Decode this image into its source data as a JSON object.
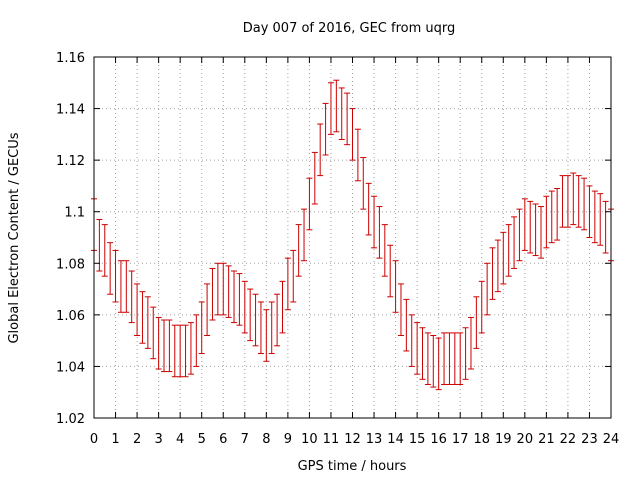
{
  "chart_data": {
    "type": "scatter",
    "title": "Day 007 of 2016, GEC from uqrg",
    "xlabel": "GPS time / hours",
    "ylabel": "Global Electron Content / GECUs",
    "xlim": [
      0,
      24
    ],
    "ylim": [
      1.02,
      1.16
    ],
    "xticks": [
      0,
      1,
      2,
      3,
      4,
      5,
      6,
      7,
      8,
      9,
      10,
      11,
      12,
      13,
      14,
      15,
      16,
      17,
      18,
      19,
      20,
      21,
      22,
      23,
      24
    ],
    "yticks": [
      "1.02",
      "1.04",
      "1.06",
      "1.08",
      "1.1",
      "1.12",
      "1.14",
      "1.16"
    ],
    "grid": true,
    "error_bars": true,
    "series": [
      {
        "color": "#cc0000",
        "x": [
          0,
          0.25,
          0.5,
          0.75,
          1,
          1.25,
          1.5,
          1.75,
          2,
          2.25,
          2.5,
          2.75,
          3,
          3.25,
          3.5,
          3.75,
          4,
          4.25,
          4.5,
          4.75,
          5,
          5.25,
          5.5,
          5.75,
          6,
          6.25,
          6.5,
          6.75,
          7,
          7.25,
          7.5,
          7.75,
          8,
          8.25,
          8.5,
          8.75,
          9,
          9.25,
          9.5,
          9.75,
          10,
          10.25,
          10.5,
          10.75,
          11,
          11.25,
          11.5,
          11.75,
          12,
          12.25,
          12.5,
          12.75,
          13,
          13.25,
          13.5,
          13.75,
          14,
          14.25,
          14.5,
          14.75,
          15,
          15.25,
          15.5,
          15.75,
          16,
          16.25,
          16.5,
          16.75,
          17,
          17.25,
          17.5,
          17.75,
          18,
          18.25,
          18.5,
          18.75,
          19,
          19.25,
          19.5,
          19.75,
          20,
          20.25,
          20.5,
          20.75,
          21,
          21.25,
          21.5,
          21.75,
          22,
          22.25,
          22.5,
          22.75,
          23,
          23.25,
          23.5,
          23.75,
          24
        ],
        "y": [
          1.095,
          1.087,
          1.085,
          1.078,
          1.075,
          1.071,
          1.071,
          1.067,
          1.062,
          1.059,
          1.057,
          1.053,
          1.049,
          1.048,
          1.048,
          1.046,
          1.046,
          1.046,
          1.047,
          1.05,
          1.055,
          1.062,
          1.068,
          1.07,
          1.07,
          1.069,
          1.067,
          1.066,
          1.063,
          1.06,
          1.058,
          1.055,
          1.052,
          1.055,
          1.058,
          1.063,
          1.072,
          1.075,
          1.085,
          1.091,
          1.103,
          1.113,
          1.124,
          1.132,
          1.14,
          1.141,
          1.138,
          1.136,
          1.13,
          1.122,
          1.111,
          1.101,
          1.096,
          1.092,
          1.085,
          1.077,
          1.071,
          1.062,
          1.056,
          1.05,
          1.047,
          1.045,
          1.043,
          1.042,
          1.041,
          1.043,
          1.043,
          1.043,
          1.043,
          1.045,
          1.049,
          1.057,
          1.063,
          1.07,
          1.076,
          1.079,
          1.082,
          1.085,
          1.088,
          1.091,
          1.095,
          1.094,
          1.093,
          1.092,
          1.096,
          1.098,
          1.099,
          1.104,
          1.104,
          1.105,
          1.104,
          1.103,
          1.1,
          1.098,
          1.097,
          1.094,
          1.091
        ],
        "err": [
          0.01,
          0.01,
          0.01,
          0.01,
          0.01,
          0.01,
          0.01,
          0.01,
          0.01,
          0.01,
          0.01,
          0.01,
          0.01,
          0.01,
          0.01,
          0.01,
          0.01,
          0.01,
          0.01,
          0.01,
          0.01,
          0.01,
          0.01,
          0.01,
          0.01,
          0.01,
          0.01,
          0.01,
          0.01,
          0.01,
          0.01,
          0.01,
          0.01,
          0.01,
          0.01,
          0.01,
          0.01,
          0.01,
          0.01,
          0.01,
          0.01,
          0.01,
          0.01,
          0.01,
          0.01,
          0.01,
          0.01,
          0.01,
          0.01,
          0.01,
          0.01,
          0.01,
          0.01,
          0.01,
          0.01,
          0.01,
          0.01,
          0.01,
          0.01,
          0.01,
          0.01,
          0.01,
          0.01,
          0.01,
          0.01,
          0.01,
          0.01,
          0.01,
          0.01,
          0.01,
          0.01,
          0.01,
          0.01,
          0.01,
          0.01,
          0.01,
          0.01,
          0.01,
          0.01,
          0.01,
          0.01,
          0.01,
          0.01,
          0.01,
          0.01,
          0.01,
          0.01,
          0.01,
          0.01,
          0.01,
          0.01,
          0.01,
          0.01,
          0.01,
          0.01,
          0.01,
          0.01
        ]
      }
    ]
  }
}
